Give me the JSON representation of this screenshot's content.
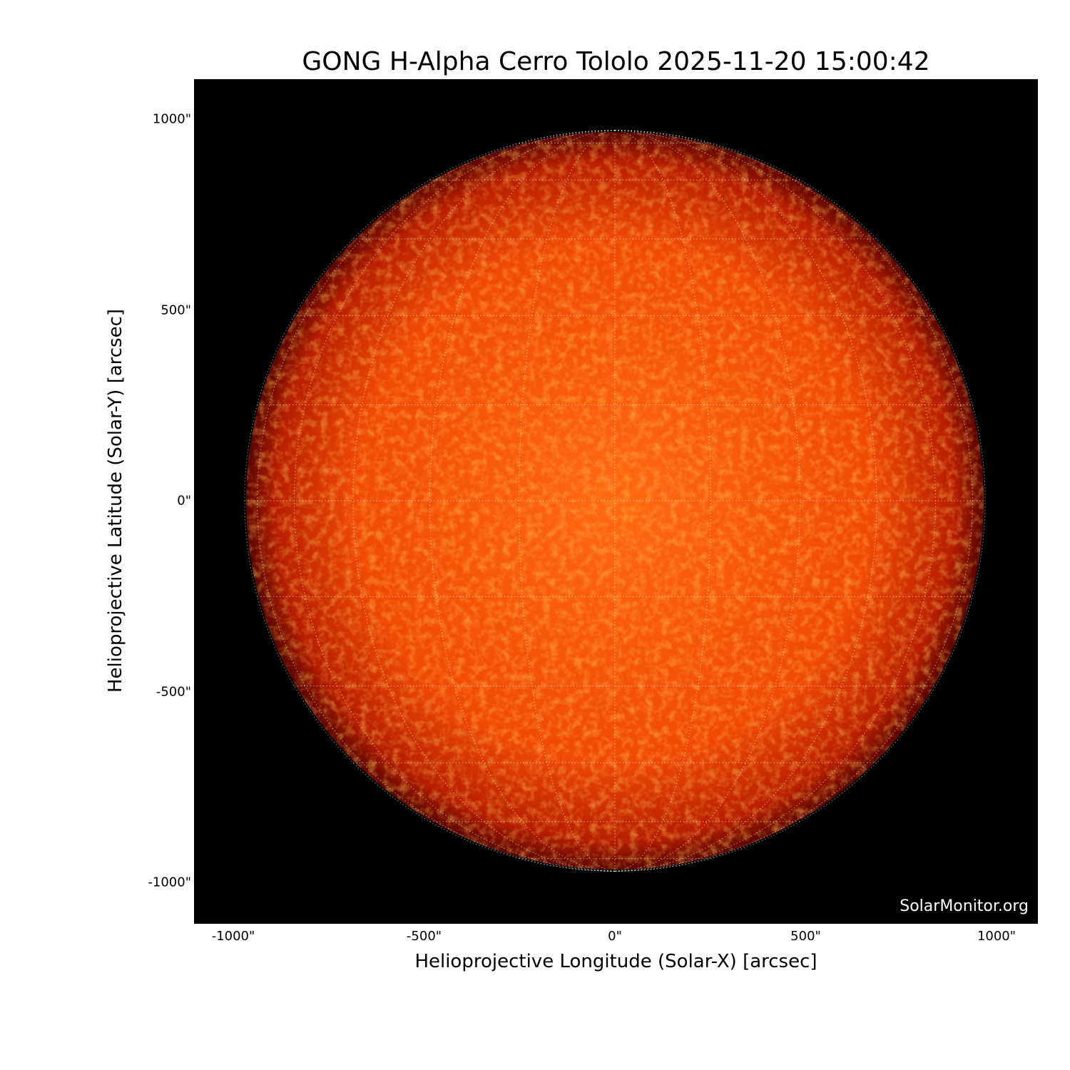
{
  "chart_data": {
    "type": "heatmap",
    "title": "GONG H-Alpha Cerro Tololo 2025-11-20 15:00:42",
    "xlabel": "Helioprojective Longitude (Solar-X) [arcsec]",
    "ylabel": "Helioprojective Latitude (Solar-Y) [arcsec]",
    "xlim": [
      -1100,
      1110
    ],
    "ylim": [
      -1110,
      1100
    ],
    "xticks": [
      "-1000\"",
      "-500\"",
      "0\"",
      "500\"",
      "1000\""
    ],
    "yticks": [
      "1000\"",
      "500\"",
      "0\"",
      "-500\"",
      "-1000\""
    ],
    "solar_radius_arcsec": 965,
    "grid_spacing_deg": 15,
    "colormap": "red-orange (H-alpha)",
    "background_color": "#000000",
    "watermark": "SolarMonitor.org"
  }
}
